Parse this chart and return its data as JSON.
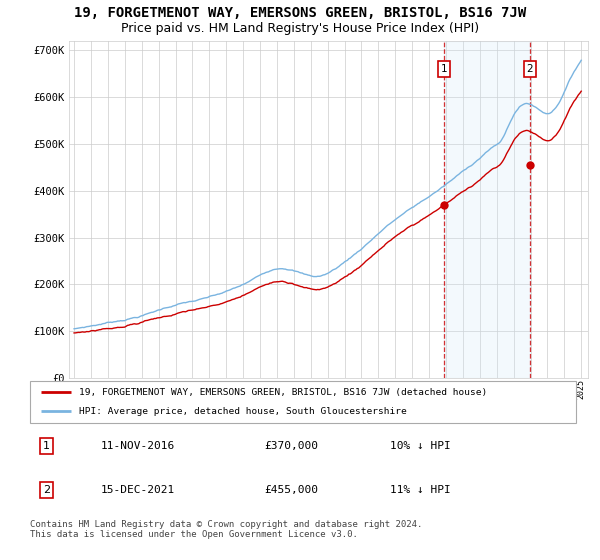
{
  "title": "19, FORGETMENOT WAY, EMERSONS GREEN, BRISTOL, BS16 7JW",
  "subtitle": "Price paid vs. HM Land Registry's House Price Index (HPI)",
  "title_fontsize": 10,
  "subtitle_fontsize": 9,
  "ylabel_ticks": [
    "£0",
    "£100K",
    "£200K",
    "£300K",
    "£400K",
    "£500K",
    "£600K",
    "£700K"
  ],
  "ytick_values": [
    0,
    100000,
    200000,
    300000,
    400000,
    500000,
    600000,
    700000
  ],
  "ylim": [
    0,
    720000
  ],
  "hpi_color": "#7ab4e0",
  "price_color": "#cc0000",
  "shade_color": "#d0e8f8",
  "legend_line1": "19, FORGETMENOT WAY, EMERSONS GREEN, BRISTOL, BS16 7JW (detached house)",
  "legend_line2": "HPI: Average price, detached house, South Gloucestershire",
  "annot1_date": "11-NOV-2016",
  "annot1_price": "£370,000",
  "annot1_hpi": "10% ↓ HPI",
  "annot2_date": "15-DEC-2021",
  "annot2_price": "£455,000",
  "annot2_hpi": "11% ↓ HPI",
  "footer": "Contains HM Land Registry data © Crown copyright and database right 2024.\nThis data is licensed under the Open Government Licence v3.0.",
  "background_color": "#ffffff",
  "grid_color": "#cccccc"
}
